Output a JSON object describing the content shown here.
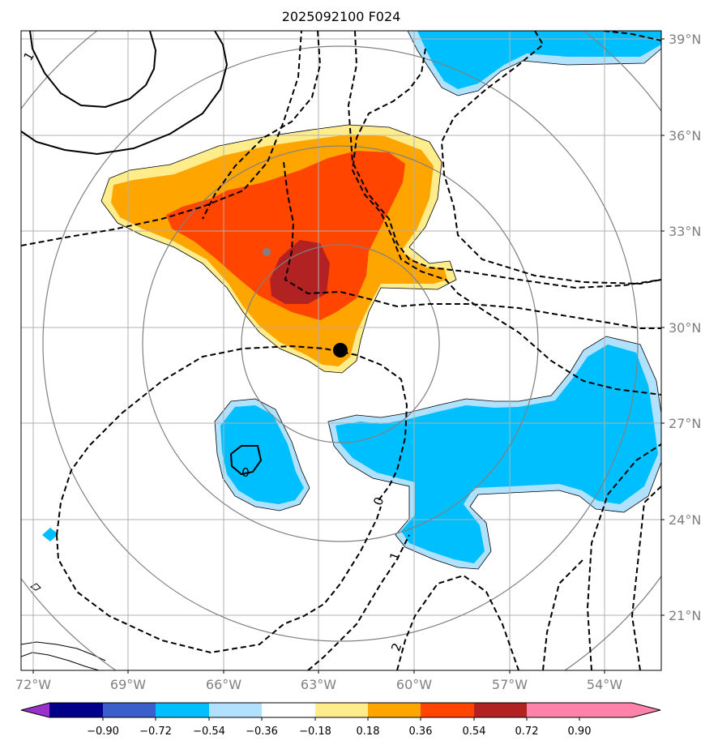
{
  "title": "2025092100 F024",
  "map": {
    "lon_range": [
      -72.0,
      -52.0
    ],
    "lat_range": [
      19.3,
      39.2
    ],
    "lon_ticks": [
      "72°W",
      "69°W",
      "66°W",
      "63°W",
      "60°W",
      "57°W",
      "54°W"
    ],
    "lat_ticks": [
      "39°N",
      "36°N",
      "33°N",
      "30°N",
      "27°N",
      "24°N",
      "21°N"
    ],
    "contour_labels": [
      "1",
      "0",
      "0",
      "1",
      "2"
    ],
    "markers": [
      {
        "name": "storm-center",
        "lon": -62.4,
        "lat": 29.3,
        "color": "#000000"
      },
      {
        "name": "secondary-center",
        "lon": -64.7,
        "lat": 32.5,
        "color": "#808080"
      }
    ]
  },
  "colorbar": {
    "ticks": [
      "−0.90",
      "−0.72",
      "−0.54",
      "−0.36",
      "−0.18",
      "0.18",
      "0.36",
      "0.54",
      "0.72",
      "0.90"
    ],
    "colors": [
      "#9932cc",
      "#00008b",
      "#3a5fcd",
      "#00bfff",
      "#b0e2ff",
      "#ffffff",
      "#ffec8b",
      "#ffa500",
      "#ff4500",
      "#b22222",
      "#ff82ab"
    ]
  }
}
